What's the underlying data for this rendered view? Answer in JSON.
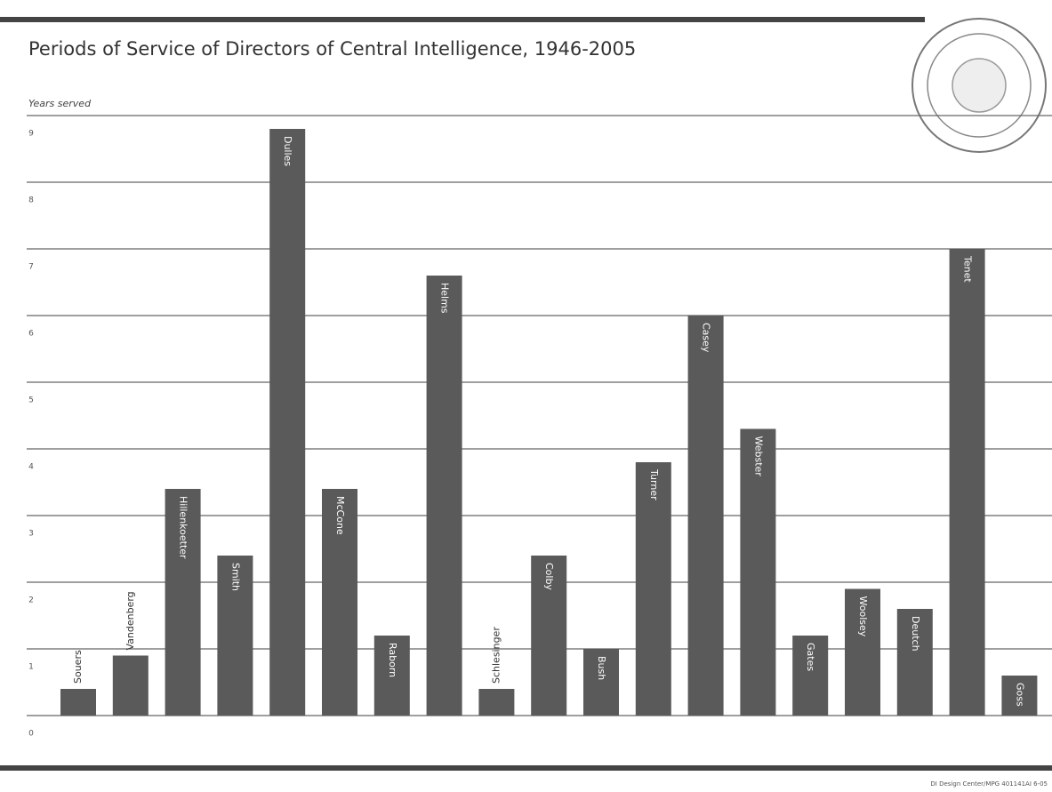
{
  "chart_data": {
    "type": "bar",
    "title": "Periods of Service of Directors of Central Intelligence, 1946-2005",
    "y_axis_label": "Years served",
    "credit": "DI Design Center/MPG 401141AI 6-05",
    "categories": [
      "Souers",
      "Vandenberg",
      "Hillenkoetter",
      "Smith",
      "Dulles",
      "McCone",
      "Raborn",
      "Helms",
      "Schlesinger",
      "Colby",
      "Bush",
      "Turner",
      "Casey",
      "Webster",
      "Gates",
      "Woolsey",
      "Deutch",
      "Tenet",
      "Goss"
    ],
    "values": [
      0.4,
      0.9,
      3.4,
      2.4,
      8.8,
      3.4,
      1.2,
      6.6,
      0.4,
      2.4,
      1.0,
      3.8,
      6.0,
      4.3,
      1.2,
      1.9,
      1.6,
      7.0,
      0.6
    ],
    "color": "#5a5a5a",
    "ylim": [
      0,
      9
    ],
    "yticks": [
      0,
      1,
      2,
      3,
      4,
      5,
      6,
      7,
      8,
      9
    ],
    "grid": true
  }
}
